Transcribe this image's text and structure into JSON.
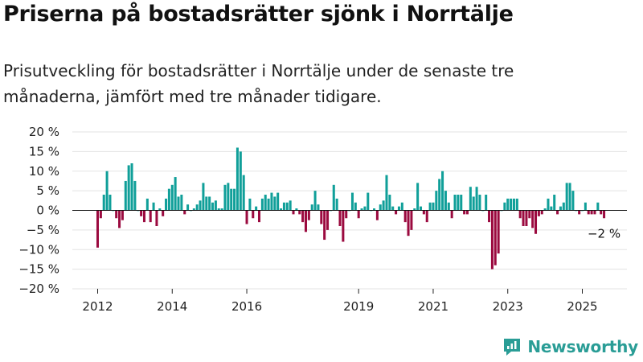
{
  "title": "Priserna på bostadsrätter sjönk i Norrtälje",
  "subtitle": "Prisutveckling för bostadsrätter i Norrtälje under de senaste tre månaderna, jämfört med tre månader tidigare.",
  "brand": {
    "name": "Newsworthy",
    "icon": "newsworthy-logo-icon",
    "color": "#2a9d96"
  },
  "colors": {
    "positive": "#109f99",
    "negative": "#9b0a3f"
  },
  "chart_data": {
    "type": "bar",
    "title": "Priserna på bostadsrätter sjönk i Norrtälje",
    "subtitle": "Prisutveckling för bostadsrätter i Norrtälje under de senaste tre månaderna, jämfört med tre månader tidigare.",
    "xlabel": "",
    "ylabel": "",
    "ylim": [
      -20,
      20
    ],
    "yticks": [
      20,
      15,
      10,
      5,
      0,
      -5,
      -10,
      -15,
      -20
    ],
    "ytick_labels": [
      "20 %",
      "15 %",
      "10 %",
      "5 %",
      "0 %",
      "−5 %",
      "−10 %",
      "−15 %",
      "−20 %"
    ],
    "xticks": [
      2012,
      2014,
      2016,
      2019,
      2021,
      2023,
      2025
    ],
    "xtick_labels": [
      "2012",
      "2014",
      "2016",
      "2019",
      "2021",
      "2023",
      "2025"
    ],
    "grid": true,
    "legend": "none",
    "start": "2012-01",
    "frequency": "monthly",
    "values": [
      -9.5,
      -2,
      4,
      10,
      4,
      0,
      -2,
      -4.5,
      -2.5,
      7.5,
      11.5,
      12,
      7.5,
      0,
      -1.5,
      -3,
      3,
      -3,
      2,
      -4,
      0.5,
      -1.5,
      3,
      5.5,
      6.5,
      8.5,
      3.5,
      4,
      -1,
      1.5,
      0,
      0.5,
      1.5,
      2.5,
      7,
      3.5,
      3.5,
      2,
      2.5,
      0.5,
      0.5,
      6.5,
      7,
      5.5,
      5.5,
      16,
      15,
      9,
      -3.5,
      3,
      -2,
      1,
      -3,
      3,
      4,
      3,
      4.5,
      3.5,
      4.5,
      0.5,
      2,
      2,
      2.5,
      -1,
      0.5,
      -1,
      -3,
      -5.5,
      -2.5,
      1.5,
      5,
      1.5,
      -3.5,
      -7.5,
      -5,
      0,
      6.5,
      3,
      -4,
      -8,
      -2,
      0,
      4.5,
      2,
      -2,
      0.5,
      1,
      4.5,
      0,
      0.5,
      -2.5,
      1.5,
      2.5,
      9,
      4,
      1,
      -1,
      1,
      2,
      -3,
      -6.5,
      -5,
      0.5,
      7,
      1,
      -1,
      -3,
      2,
      2,
      5,
      8,
      10,
      5,
      2,
      -2,
      4,
      4,
      4,
      -1,
      -1,
      6,
      3.5,
      6,
      4,
      0,
      4,
      -3,
      -15,
      -14,
      -11,
      0,
      2,
      3,
      3,
      3,
      3,
      -2,
      -4,
      -4,
      -2,
      -4.5,
      -6,
      -1.5,
      -1,
      0.5,
      3,
      1,
      4,
      -1,
      1,
      2,
      7,
      7,
      5,
      0,
      -1,
      0,
      2,
      -1,
      -1,
      -1,
      2,
      -1,
      -2
    ],
    "annotations": [
      {
        "text": "−2 %",
        "target": "last"
      }
    ]
  }
}
